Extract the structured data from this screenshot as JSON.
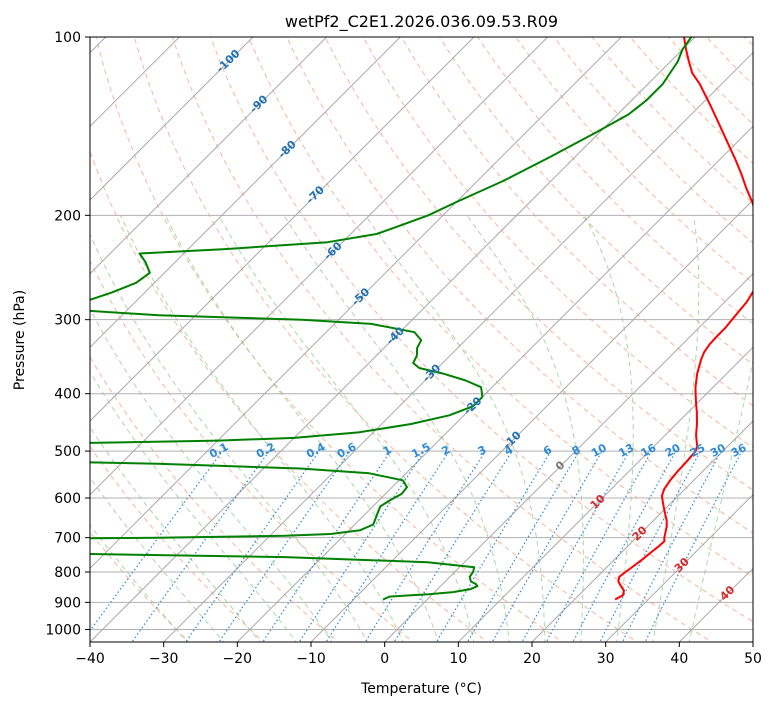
{
  "chart_data": {
    "type": "line",
    "title": "wetPf2_C2E1.2026.036.09.53.R09",
    "xlabel": "Temperature (°C)",
    "ylabel": "Pressure (hPa)",
    "xlim": [
      -40,
      50
    ],
    "ylim": [
      1050,
      100
    ],
    "y_scale": "log",
    "skew": "skew-T",
    "grid": true,
    "x_ticks": [
      "−40",
      "−30",
      "−20",
      "−10",
      "0",
      "10",
      "20",
      "30",
      "40",
      "50"
    ],
    "y_ticks": [
      "100",
      "200",
      "300",
      "400",
      "500",
      "600",
      "700",
      "800",
      "900",
      "1000"
    ],
    "isotherm_labels": [
      {
        "text": "-100",
        "t": -100,
        "p": 110
      },
      {
        "text": "-90",
        "t": -90,
        "p": 130
      },
      {
        "text": "-80",
        "t": -80,
        "p": 155
      },
      {
        "text": "-70",
        "t": -70,
        "p": 185
      },
      {
        "text": "-60",
        "t": -60,
        "p": 230
      },
      {
        "text": "-50",
        "t": -50,
        "p": 275
      },
      {
        "text": "-40",
        "t": -40,
        "p": 320
      },
      {
        "text": "-30",
        "t": -30,
        "p": 370
      },
      {
        "text": "-20",
        "t": -20,
        "p": 420
      },
      {
        "text": "-10",
        "t": -10,
        "p": 480
      },
      {
        "text": "0",
        "t": 0,
        "p": 530
      },
      {
        "text": "10",
        "t": 10,
        "p": 610
      },
      {
        "text": "20",
        "t": 20,
        "p": 690
      },
      {
        "text": "30",
        "t": 30,
        "p": 780
      },
      {
        "text": "40",
        "t": 40,
        "p": 870
      }
    ],
    "mixing_ratio_labels": [
      "0.1",
      "0.2",
      "0.4",
      "0.6",
      "1",
      "1.5",
      "2",
      "3",
      "4",
      "6",
      "8",
      "10",
      "13",
      "16",
      "20",
      "25",
      "30",
      "36"
    ],
    "series": [
      {
        "color": "#ff0000",
        "points": [
          [
            25.5,
            890
          ],
          [
            26.0,
            875
          ],
          [
            25.5,
            860
          ],
          [
            24.5,
            845
          ],
          [
            23.5,
            830
          ],
          [
            23.0,
            815
          ],
          [
            23.2,
            800
          ],
          [
            23.5,
            780
          ],
          [
            23.8,
            760
          ],
          [
            24.0,
            740
          ],
          [
            24.2,
            725
          ],
          [
            24.3,
            710
          ],
          [
            23.8,
            700
          ],
          [
            23.2,
            685
          ],
          [
            22.6,
            670
          ],
          [
            21.8,
            655
          ],
          [
            20.8,
            640
          ],
          [
            19.8,
            625
          ],
          [
            18.8,
            610
          ],
          [
            17.8,
            595
          ],
          [
            17.2,
            580
          ],
          [
            16.8,
            560
          ],
          [
            16.6,
            540
          ],
          [
            16.5,
            520
          ],
          [
            16.3,
            500
          ],
          [
            15.8,
            490
          ],
          [
            15.0,
            480
          ],
          [
            14.2,
            470
          ],
          [
            13.5,
            460
          ],
          [
            12.8,
            450
          ],
          [
            12.0,
            440
          ],
          [
            11.2,
            430
          ],
          [
            10.3,
            420
          ],
          [
            9.4,
            410
          ],
          [
            8.5,
            400
          ],
          [
            7.6,
            390
          ],
          [
            6.8,
            380
          ],
          [
            6.0,
            370
          ],
          [
            5.3,
            360
          ],
          [
            4.6,
            350
          ],
          [
            4.0,
            340
          ],
          [
            3.7,
            330
          ],
          [
            3.6,
            320
          ],
          [
            3.6,
            310
          ],
          [
            3.4,
            300
          ],
          [
            3.2,
            290
          ],
          [
            3.0,
            280
          ],
          [
            2.5,
            270
          ],
          [
            2.0,
            260
          ],
          [
            1.0,
            250
          ],
          [
            -0.5,
            240
          ],
          [
            -2.0,
            230
          ],
          [
            -3.7,
            220
          ],
          [
            -5.5,
            210
          ],
          [
            -7.5,
            200
          ],
          [
            -9.8,
            190
          ],
          [
            -12.5,
            180
          ],
          [
            -15.2,
            170
          ],
          [
            -18.2,
            160
          ],
          [
            -21.5,
            150
          ],
          [
            -25.0,
            140
          ],
          [
            -28.8,
            130
          ],
          [
            -33.0,
            120
          ],
          [
            -35.5,
            115
          ],
          [
            -37.5,
            110
          ],
          [
            -39.5,
            105
          ],
          [
            -41.5,
            100
          ]
        ]
      },
      {
        "color": "#008000",
        "points": [
          [
            -6.0,
            890
          ],
          [
            -5.5,
            880
          ],
          [
            -3.0,
            876
          ],
          [
            -0.5,
            872
          ],
          [
            2.5,
            865
          ],
          [
            4.5,
            855
          ],
          [
            5.0,
            845
          ],
          [
            4.5,
            838
          ],
          [
            3.5,
            830
          ],
          [
            2.7,
            815
          ],
          [
            2.5,
            800
          ],
          [
            2.0,
            785
          ],
          [
            -5.0,
            770
          ],
          [
            -25.0,
            755
          ],
          [
            -55.0,
            745
          ],
          [
            -80.0,
            735
          ],
          [
            -110.0,
            725
          ],
          [
            -115.0,
            715
          ],
          [
            -75.0,
            705
          ],
          [
            -45.0,
            700
          ],
          [
            -28.0,
            695
          ],
          [
            -22.0,
            690
          ],
          [
            -18.5,
            680
          ],
          [
            -17.5,
            665
          ],
          [
            -18.0,
            650
          ],
          [
            -18.5,
            635
          ],
          [
            -19.0,
            620
          ],
          [
            -18.5,
            605
          ],
          [
            -17.8,
            590
          ],
          [
            -18.0,
            575
          ],
          [
            -19.5,
            560
          ],
          [
            -25.0,
            545
          ],
          [
            -35.0,
            535
          ],
          [
            -55.0,
            525
          ],
          [
            -80.0,
            518
          ],
          [
            -100.0,
            512
          ],
          [
            -90.0,
            505
          ],
          [
            -80.0,
            500
          ],
          [
            -75.0,
            490
          ],
          [
            -70.0,
            485
          ],
          [
            -50.0,
            480
          ],
          [
            -40.0,
            475
          ],
          [
            -32.0,
            465
          ],
          [
            -26.0,
            450
          ],
          [
            -22.0,
            435
          ],
          [
            -20.0,
            420
          ],
          [
            -20.0,
            405
          ],
          [
            -21.5,
            390
          ],
          [
            -24.5,
            380
          ],
          [
            -28.5,
            370
          ],
          [
            -32.5,
            362
          ],
          [
            -34.0,
            355
          ],
          [
            -34.5,
            345
          ],
          [
            -35.5,
            335
          ],
          [
            -36.0,
            325
          ],
          [
            -38.0,
            315
          ],
          [
            -45.0,
            305
          ],
          [
            -55.0,
            300
          ],
          [
            -75.0,
            295
          ],
          [
            -85.0,
            290
          ],
          [
            -87.0,
            280
          ],
          [
            -84.5,
            270
          ],
          [
            -82.5,
            260
          ],
          [
            -82.0,
            250
          ],
          [
            -84.0,
            240
          ],
          [
            -86.0,
            232
          ],
          [
            -75.0,
            228
          ],
          [
            -62.0,
            222
          ],
          [
            -56.5,
            215
          ],
          [
            -55.0,
            210
          ],
          [
            -52.0,
            200
          ],
          [
            -50.0,
            190
          ],
          [
            -46.5,
            175
          ],
          [
            -43.5,
            160
          ],
          [
            -40.5,
            145
          ],
          [
            -38.5,
            135
          ],
          [
            -38.0,
            128
          ],
          [
            -38.0,
            120
          ],
          [
            -38.5,
            115
          ],
          [
            -39.0,
            110
          ],
          [
            -40.0,
            105
          ],
          [
            -40.5,
            100
          ]
        ]
      }
    ]
  }
}
